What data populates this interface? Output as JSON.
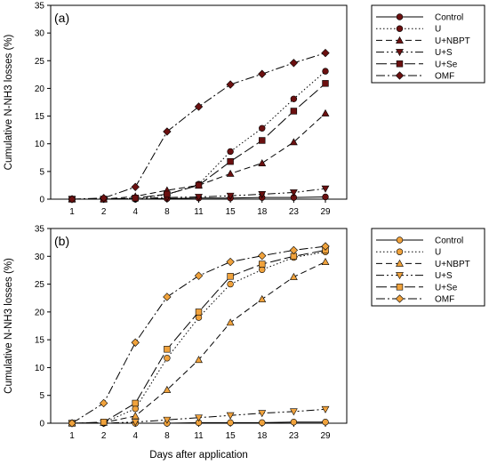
{
  "chart_data": [
    {
      "type": "line",
      "panel_label": "(a)",
      "x": [
        "1",
        "2",
        "4",
        "8",
        "11",
        "15",
        "18",
        "23",
        "29"
      ],
      "ylabel": "Cumulative N-NH3 losses (%)",
      "xlabel": "",
      "ylim": [
        0,
        35
      ],
      "yticks": [
        "0",
        "5",
        "10",
        "15",
        "20",
        "25",
        "30",
        "35"
      ],
      "grid": false,
      "legend": "outside-right",
      "marker_color": "#6b1010",
      "series": [
        {
          "name": "Control",
          "marker": "circle",
          "dash": "solid",
          "values": [
            0,
            0,
            0,
            0.1,
            0.2,
            0.2,
            0.3,
            0.3,
            0.4
          ]
        },
        {
          "name": "U",
          "marker": "circle",
          "dash": "dotted",
          "values": [
            0,
            0,
            0.1,
            0.8,
            2.7,
            8.6,
            12.8,
            18.1,
            23.1
          ]
        },
        {
          "name": "U+NBPT",
          "marker": "triangle-up",
          "dash": "dashed",
          "values": [
            0,
            0,
            0.5,
            1.6,
            2.5,
            4.6,
            6.5,
            10.3,
            15.5
          ]
        },
        {
          "name": "U+S",
          "marker": "triangle-down",
          "dash": "dashdotdot",
          "values": [
            0,
            0,
            0.1,
            0.3,
            0.4,
            0.6,
            0.9,
            1.2,
            1.9
          ]
        },
        {
          "name": "U+Se",
          "marker": "square",
          "dash": "longdash",
          "values": [
            0,
            0,
            0.2,
            0.9,
            2.5,
            6.8,
            10.6,
            15.9,
            20.9
          ]
        },
        {
          "name": "OMF",
          "marker": "diamond",
          "dash": "dashdot",
          "values": [
            0,
            0.2,
            2.2,
            12.2,
            16.7,
            20.7,
            22.6,
            24.6,
            26.4
          ]
        }
      ]
    },
    {
      "type": "line",
      "panel_label": "(b)",
      "x": [
        "1",
        "2",
        "4",
        "8",
        "11",
        "15",
        "18",
        "23",
        "29"
      ],
      "ylabel": "Cumulative N-NH3 losses (%)",
      "xlabel": "Days after application",
      "ylim": [
        0,
        35
      ],
      "yticks": [
        "0",
        "5",
        "10",
        "15",
        "20",
        "25",
        "30",
        "35"
      ],
      "grid": false,
      "legend": "outside-right",
      "marker_color": "#f0a23c",
      "series": [
        {
          "name": "Control",
          "marker": "circle",
          "dash": "solid",
          "values": [
            0,
            0,
            0,
            0,
            0.1,
            0.1,
            0.1,
            0.2,
            0.2
          ]
        },
        {
          "name": "U",
          "marker": "circle",
          "dash": "dotted",
          "values": [
            0,
            0.1,
            2.6,
            11.7,
            19.0,
            25.0,
            27.6,
            29.8,
            30.8
          ]
        },
        {
          "name": "U+NBPT",
          "marker": "triangle-up",
          "dash": "dashed",
          "values": [
            0,
            0.1,
            1.3,
            6.0,
            11.4,
            18.1,
            22.3,
            26.3,
            29.0
          ]
        },
        {
          "name": "U+S",
          "marker": "triangle-down",
          "dash": "dashdotdot",
          "values": [
            0,
            0,
            0.2,
            0.6,
            1.0,
            1.4,
            1.8,
            2.1,
            2.5
          ]
        },
        {
          "name": "U+Se",
          "marker": "square",
          "dash": "longdash",
          "values": [
            0,
            0.2,
            3.6,
            13.3,
            20.0,
            26.4,
            28.6,
            30.0,
            31.1
          ]
        },
        {
          "name": "OMF",
          "marker": "diamond",
          "dash": "dashdot",
          "values": [
            0,
            3.6,
            14.5,
            22.7,
            26.5,
            29.0,
            30.1,
            31.1,
            31.8
          ]
        }
      ]
    }
  ]
}
